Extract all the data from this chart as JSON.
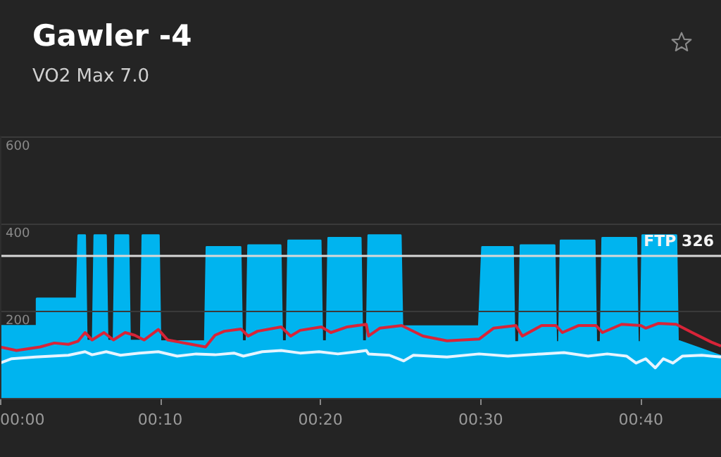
{
  "chart_data": {
    "type": "line",
    "title": "Gawler -4",
    "subtitle": "VO2 Max 7.0",
    "xlim": [
      0,
      45
    ],
    "ylim": [
      0,
      600
    ],
    "xticks": [
      {
        "value": 0,
        "label": "00:00"
      },
      {
        "value": 10,
        "label": "00:10"
      },
      {
        "value": 20,
        "label": "00:20"
      },
      {
        "value": 30,
        "label": "00:30"
      },
      {
        "value": 40,
        "label": "00:40"
      }
    ],
    "yticks": [
      200,
      400,
      600
    ],
    "grid": "y",
    "marker": "none",
    "ref_lines": [
      {
        "axis": "y",
        "value": 326,
        "label": "FTP 326",
        "color": "#d8d8d8"
      }
    ],
    "series": [
      {
        "type": "area",
        "color": "#00b4ef",
        "x": [
          0,
          2.3,
          2.3,
          4.8,
          4.9,
          5.3,
          5.4,
          5.8,
          5.9,
          6.6,
          6.7,
          7.1,
          7.2,
          8.0,
          8.1,
          8.8,
          8.9,
          9.9,
          10.0,
          12.8,
          12.9,
          15.0,
          15.1,
          15.4,
          15.5,
          17.5,
          17.6,
          17.9,
          18.0,
          20.0,
          20.1,
          20.4,
          20.5,
          22.5,
          22.6,
          22.9,
          23.0,
          25.0,
          25.1,
          29.9,
          30.1,
          32.0,
          32.1,
          32.4,
          32.5,
          34.6,
          34.7,
          34.9,
          35.0,
          37.1,
          37.2,
          37.5,
          37.6,
          39.7,
          39.8,
          40.0,
          40.1,
          42.2,
          42.3,
          45
        ],
        "values": [
          165,
          165,
          228,
          228,
          373,
          373,
          131,
          131,
          373,
          373,
          131,
          131,
          373,
          373,
          131,
          131,
          373,
          373,
          130,
          130,
          346,
          346,
          130,
          130,
          350,
          350,
          130,
          130,
          361,
          361,
          130,
          130,
          367,
          367,
          130,
          130,
          373,
          373,
          164,
          164,
          346,
          346,
          128,
          128,
          350,
          350,
          128,
          128,
          361,
          361,
          128,
          128,
          367,
          367,
          128,
          128,
          373,
          373,
          131,
          96
        ]
      },
      {
        "type": "line",
        "color": "#d82438",
        "x": [
          0,
          1.03,
          2.5,
          3.39,
          4.27,
          4.86,
          5.31,
          5.75,
          6.49,
          7.08,
          7.81,
          8.4,
          8.99,
          9.88,
          10.47,
          11.65,
          12.83,
          13.42,
          14.0,
          15.04,
          15.49,
          16.07,
          17.55,
          18.14,
          18.73,
          20.06,
          20.65,
          21.68,
          22.86,
          23.0,
          23.7,
          25.07,
          26.4,
          27.9,
          29.9,
          30.8,
          32.2,
          32.6,
          33.8,
          34.7,
          35.1,
          36.1,
          37.2,
          37.6,
          38.8,
          40.0,
          40.3,
          41.1,
          42.2,
          43.2,
          44.4,
          45
        ],
        "values": [
          117,
          109,
          117,
          126,
          123,
          130,
          150,
          133,
          150,
          133,
          150,
          144,
          133,
          157,
          133,
          125,
          117,
          144,
          153,
          158,
          142,
          153,
          163,
          142,
          155,
          163,
          150,
          163,
          169,
          142,
          160,
          166,
          142,
          131,
          135,
          160,
          166,
          142,
          166,
          166,
          150,
          166,
          166,
          150,
          169,
          166,
          160,
          171,
          169,
          150,
          128,
          119
        ]
      },
      {
        "type": "line",
        "color": "#e6f4ff",
        "x": [
          0,
          0.73,
          2.21,
          4.27,
          5.31,
          5.75,
          6.63,
          7.52,
          8.7,
          9.88,
          11.06,
          12.24,
          13.42,
          14.6,
          15.19,
          16.37,
          17.55,
          18.73,
          19.91,
          21.09,
          22.27,
          22.86,
          23.0,
          24.3,
          25.2,
          25.8,
          27.9,
          29.9,
          31.7,
          33.8,
          35.2,
          36.7,
          37.9,
          39.1,
          39.7,
          40.3,
          40.9,
          41.4,
          42.0,
          42.6,
          43.8,
          45
        ],
        "values": [
          80,
          90,
          94,
          98,
          106,
          99,
          106,
          98,
          103,
          106,
          96,
          101,
          99,
          103,
          96,
          106,
          109,
          103,
          106,
          101,
          106,
          109,
          101,
          98,
          85,
          98,
          94,
          101,
          96,
          101,
          104,
          96,
          101,
          96,
          80,
          90,
          69,
          90,
          80,
          96,
          98,
          94
        ]
      }
    ]
  }
}
